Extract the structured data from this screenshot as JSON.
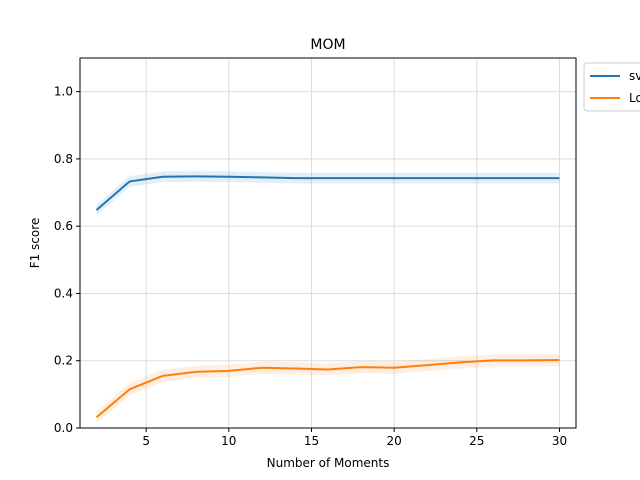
{
  "chart_data": {
    "type": "line",
    "title": "MOM",
    "xlabel": "Number of Moments",
    "ylabel": "F1 score",
    "xlim": [
      1,
      31
    ],
    "ylim": [
      0.0,
      1.1
    ],
    "xticks": [
      5,
      10,
      15,
      20,
      25,
      30
    ],
    "yticks": [
      0.0,
      0.2,
      0.4,
      0.6,
      0.8,
      1.0
    ],
    "ytick_labels": [
      "0.0",
      "0.2",
      "0.4",
      "0.6",
      "0.8",
      "1.0"
    ],
    "grid": true,
    "legend_position": "outside top-right (clipped)",
    "x": [
      2,
      4,
      6,
      8,
      10,
      12,
      14,
      16,
      18,
      20,
      22,
      24,
      26,
      28,
      30
    ],
    "series": [
      {
        "name": "sv",
        "color": "#1f77b4",
        "values": [
          0.648,
          0.733,
          0.747,
          0.748,
          0.747,
          0.745,
          0.743,
          0.743,
          0.743,
          0.743,
          0.743,
          0.743,
          0.743,
          0.743,
          0.743
        ],
        "band": 0.016
      },
      {
        "name": "Lo",
        "color": "#ff7f0e",
        "values": [
          0.032,
          0.115,
          0.155,
          0.167,
          0.17,
          0.179,
          0.177,
          0.174,
          0.181,
          0.179,
          0.187,
          0.195,
          0.201,
          0.201,
          0.202
        ],
        "band": 0.018
      }
    ]
  }
}
